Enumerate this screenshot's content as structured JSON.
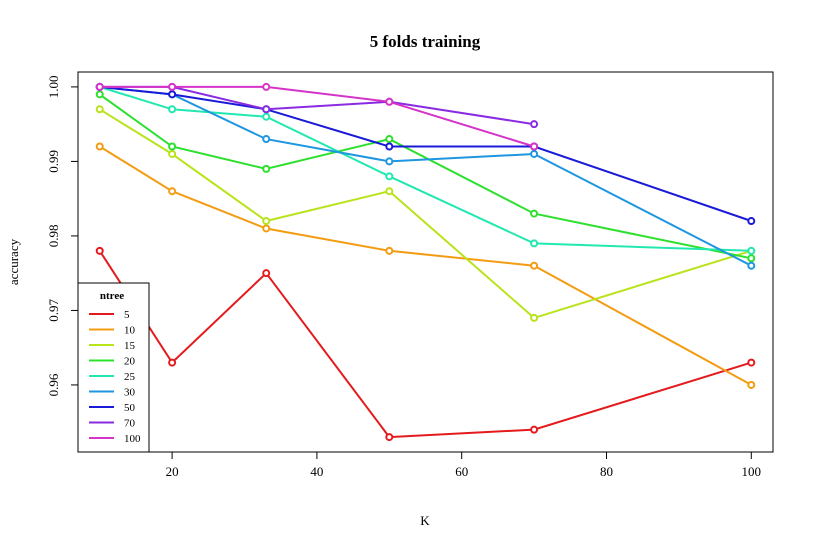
{
  "chart_data": {
    "type": "line",
    "title": "5  folds  training",
    "xlabel": "K",
    "ylabel": "accuracy",
    "xlim": [
      7,
      103
    ],
    "ylim": [
      0.951,
      1.002
    ],
    "x_ticks": [
      20,
      40,
      60,
      80,
      100
    ],
    "y_ticks": [
      0.96,
      0.97,
      0.98,
      0.99,
      1.0
    ],
    "x_tick_labels": [
      "20",
      "40",
      "60",
      "80",
      "100"
    ],
    "y_tick_labels": [
      "0.96",
      "0.97",
      "0.98",
      "0.99",
      "1.00"
    ],
    "grid": false,
    "legend": {
      "title": "ntree",
      "position": "bottom-left"
    },
    "series": [
      {
        "name": "5",
        "color": "#e41a1c",
        "points": [
          [
            10,
            0.978
          ],
          [
            20,
            0.963
          ],
          [
            33,
            0.975
          ],
          [
            50,
            0.953
          ],
          [
            70,
            0.954
          ],
          [
            100,
            0.963
          ]
        ]
      },
      {
        "name": "10",
        "color": "#f39c12",
        "points": [
          [
            10,
            0.992
          ],
          [
            20,
            0.986
          ],
          [
            33,
            0.981
          ],
          [
            50,
            0.978
          ],
          [
            70,
            0.976
          ],
          [
            100,
            0.96
          ]
        ]
      },
      {
        "name": "15",
        "color": "#b9e31b",
        "points": [
          [
            10,
            0.997
          ],
          [
            20,
            0.991
          ],
          [
            33,
            0.982
          ],
          [
            50,
            0.986
          ],
          [
            70,
            0.969
          ],
          [
            100,
            0.978
          ]
        ]
      },
      {
        "name": "20",
        "color": "#2de02d",
        "points": [
          [
            10,
            0.999
          ],
          [
            20,
            0.992
          ],
          [
            33,
            0.989
          ],
          [
            50,
            0.993
          ],
          [
            70,
            0.983
          ],
          [
            100,
            0.977
          ]
        ]
      },
      {
        "name": "25",
        "color": "#22e8b0",
        "points": [
          [
            10,
            1.0
          ],
          [
            20,
            0.997
          ],
          [
            33,
            0.996
          ],
          [
            50,
            0.988
          ],
          [
            70,
            0.979
          ],
          [
            100,
            0.978
          ]
        ]
      },
      {
        "name": "30",
        "color": "#1e96e0",
        "points": [
          [
            10,
            1.0
          ],
          [
            20,
            0.999
          ],
          [
            33,
            0.993
          ],
          [
            50,
            0.99
          ],
          [
            70,
            0.991
          ],
          [
            100,
            0.976
          ]
        ]
      },
      {
        "name": "50",
        "color": "#1a1ad8",
        "points": [
          [
            10,
            1.0
          ],
          [
            20,
            0.999
          ],
          [
            33,
            0.997
          ],
          [
            50,
            0.992
          ],
          [
            70,
            0.992
          ],
          [
            100,
            0.982
          ]
        ]
      },
      {
        "name": "70",
        "color": "#8a2be2",
        "points": [
          [
            10,
            1.0
          ],
          [
            20,
            1.0
          ],
          [
            33,
            0.997
          ],
          [
            50,
            0.998
          ],
          [
            70,
            0.995
          ]
        ]
      },
      {
        "name": "100",
        "color": "#d633c8",
        "points": [
          [
            10,
            1.0
          ],
          [
            20,
            1.0
          ],
          [
            33,
            1.0
          ],
          [
            50,
            0.998
          ],
          [
            70,
            0.992
          ]
        ]
      }
    ]
  }
}
